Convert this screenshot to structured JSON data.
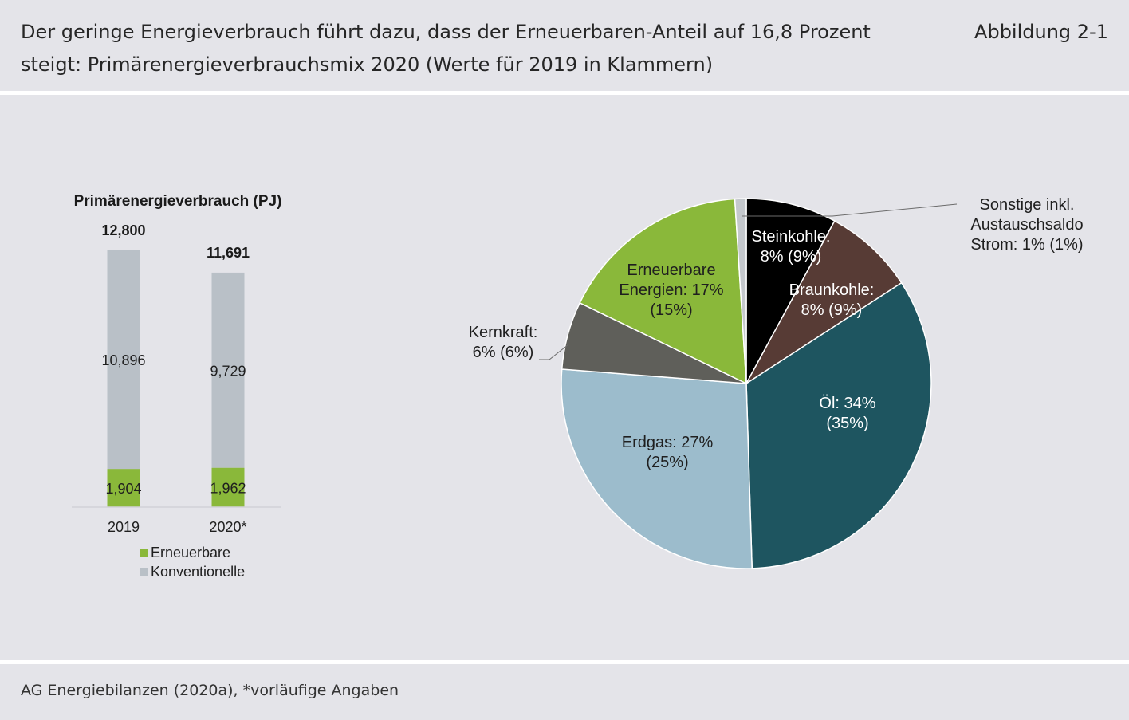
{
  "header": {
    "title": "Der geringe Energieverbrauch führt dazu, dass der Erneuerbaren-Anteil auf 16,8 Prozent\nsteigt: Primärenergieverbrauchsmix 2020 (Werte für 2019 in Klammern)",
    "figure_label": "Abbildung 2-1"
  },
  "footer": {
    "source": "AG Energiebilanzen (2020a), *vorläufige Angaben"
  },
  "colors": {
    "renewables": "#8ab83a",
    "conventional": "#b9c0c7",
    "hard_coal": "#000000",
    "lignite": "#573b35",
    "oil": "#1e5560",
    "gas": "#9cbccc",
    "nuclear": "#5f5f5a",
    "other": "#c4c8cc"
  },
  "chart_data": [
    {
      "type": "bar",
      "stacked": true,
      "title": "Primärenergieverbrauch (PJ)",
      "categories": [
        "2019",
        "2020*"
      ],
      "totals": [
        12800,
        11691
      ],
      "total_labels": [
        "12,800",
        "11,691"
      ],
      "series": [
        {
          "name": "Erneuerbare",
          "values": [
            1904,
            1962
          ],
          "labels": [
            "1,904",
            "1,962"
          ]
        },
        {
          "name": "Konventionelle",
          "values": [
            10896,
            9729
          ],
          "labels": [
            "10,896",
            "9,729"
          ]
        }
      ],
      "grid": false,
      "legend_position": "bottom"
    },
    {
      "type": "pie",
      "slices": [
        {
          "key": "hard_coal",
          "value": 8,
          "value_2019": 9,
          "label_lines": [
            "Steinkohle:",
            "8% (9%)"
          ],
          "label_color": "#ffffff"
        },
        {
          "key": "lignite",
          "value": 8,
          "value_2019": 9,
          "label_lines": [
            "Braunkohle:",
            "8% (9%)"
          ],
          "label_color": "#ffffff"
        },
        {
          "key": "oil",
          "value": 34,
          "value_2019": 35,
          "label_lines": [
            "Öl: 34%",
            "(35%)"
          ],
          "label_color": "#ffffff"
        },
        {
          "key": "gas",
          "value": 27,
          "value_2019": 25,
          "label_lines": [
            "Erdgas: 27%",
            "(25%)"
          ],
          "label_color": "#1f1f1f"
        },
        {
          "key": "nuclear",
          "value": 6,
          "value_2019": 6,
          "label_lines": [
            "Kernkraft:",
            "6% (6%)"
          ],
          "label_color": "#1f1f1f",
          "callout": true
        },
        {
          "key": "renewables",
          "value": 17,
          "value_2019": 15,
          "label_lines": [
            "Erneuerbare",
            "Energien: 17%",
            "(15%)"
          ],
          "label_color": "#1f1f1f"
        },
        {
          "key": "other",
          "value": 1,
          "value_2019": 1,
          "label_lines": [
            "Sonstige inkl.",
            "Austauschsaldo",
            "Strom: 1% (1%)"
          ],
          "label_color": "#1f1f1f",
          "callout": true
        }
      ]
    }
  ]
}
